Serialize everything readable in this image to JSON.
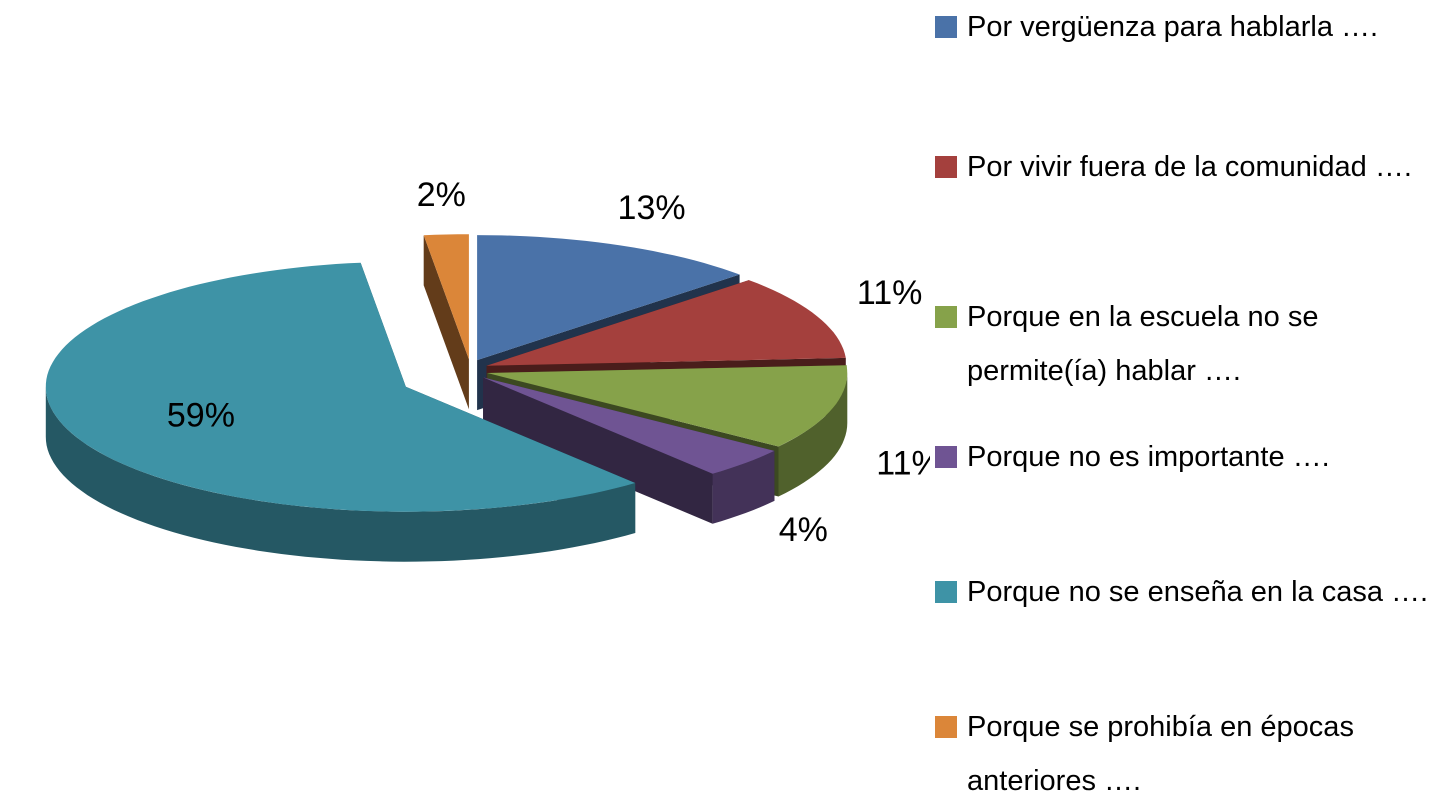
{
  "chart_data": {
    "type": "pie",
    "categories": [
      "Por vergüenza para hablarla ….",
      "Por vivir fuera de la comunidad ….",
      "Porque en la escuela no se permite(ía) hablar ….",
      "Porque no es importante ….",
      "Porque no se enseña en la casa ….",
      "Porque se prohibía en épocas anteriores …."
    ],
    "values": [
      13,
      11,
      11,
      4,
      59,
      2
    ],
    "value_labels": [
      "13%",
      "11%",
      "11%",
      "4%",
      "59%",
      "2%"
    ],
    "colors": [
      "#4a72a8",
      "#a4403d",
      "#86a24a",
      "#6f5493",
      "#3e93a6",
      "#db8639"
    ],
    "legend": "right"
  }
}
